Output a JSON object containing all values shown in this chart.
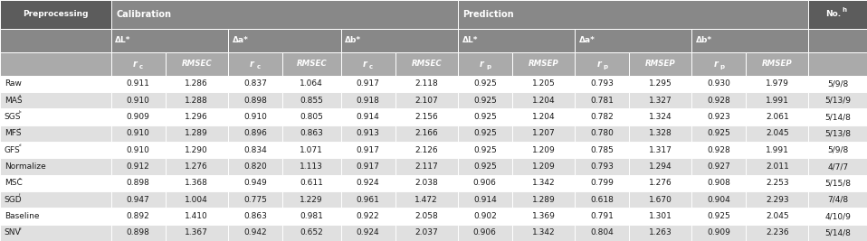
{
  "rows": [
    [
      "Raw",
      "0.911",
      "1.286",
      "0.837",
      "1.064",
      "0.917",
      "2.118",
      "0.925",
      "1.205",
      "0.793",
      "1.295",
      "0.930",
      "1.979",
      "5/9/8"
    ],
    [
      "MASᵃ",
      "0.910",
      "1.288",
      "0.898",
      "0.855",
      "0.918",
      "2.107",
      "0.925",
      "1.204",
      "0.781",
      "1.327",
      "0.928",
      "1.991",
      "5/13/9"
    ],
    [
      "SGSᵇ",
      "0.909",
      "1.296",
      "0.910",
      "0.805",
      "0.914",
      "2.156",
      "0.925",
      "1.204",
      "0.782",
      "1.324",
      "0.923",
      "2.061",
      "5/14/8"
    ],
    [
      "MFSᶜ",
      "0.910",
      "1.289",
      "0.896",
      "0.863",
      "0.913",
      "2.166",
      "0.925",
      "1.207",
      "0.780",
      "1.328",
      "0.925",
      "2.045",
      "5/13/8"
    ],
    [
      "GFSᵈ",
      "0.910",
      "1.290",
      "0.834",
      "1.071",
      "0.917",
      "2.126",
      "0.925",
      "1.209",
      "0.785",
      "1.317",
      "0.928",
      "1.991",
      "5/9/8"
    ],
    [
      "Normalize",
      "0.912",
      "1.276",
      "0.820",
      "1.113",
      "0.917",
      "2.117",
      "0.925",
      "1.209",
      "0.793",
      "1.294",
      "0.927",
      "2.011",
      "4/7/7"
    ],
    [
      "MSCᵉ",
      "0.898",
      "1.368",
      "0.949",
      "0.611",
      "0.924",
      "2.038",
      "0.906",
      "1.342",
      "0.799",
      "1.276",
      "0.908",
      "2.253",
      "5/15/8"
    ],
    [
      "SGDᶠ",
      "0.947",
      "1.004",
      "0.775",
      "1.229",
      "0.961",
      "1.472",
      "0.914",
      "1.289",
      "0.618",
      "1.670",
      "0.904",
      "2.293",
      "7/4/8"
    ],
    [
      "Baseline",
      "0.892",
      "1.410",
      "0.863",
      "0.981",
      "0.922",
      "2.058",
      "0.902",
      "1.369",
      "0.791",
      "1.301",
      "0.925",
      "2.045",
      "4/10/9"
    ],
    [
      "SNVᵍ",
      "0.898",
      "1.367",
      "0.942",
      "0.652",
      "0.924",
      "2.037",
      "0.906",
      "1.342",
      "0.804",
      "1.263",
      "0.909",
      "2.236",
      "5/14/8"
    ]
  ],
  "dark_gray": "#5c5c5c",
  "mid_gray": "#888888",
  "light_gray": "#aaaaaa",
  "even_row_bg": "#ffffff",
  "odd_row_bg": "#e0e0e0",
  "text_color": "#1a1a1a",
  "white": "#ffffff",
  "border_color": "#ffffff"
}
